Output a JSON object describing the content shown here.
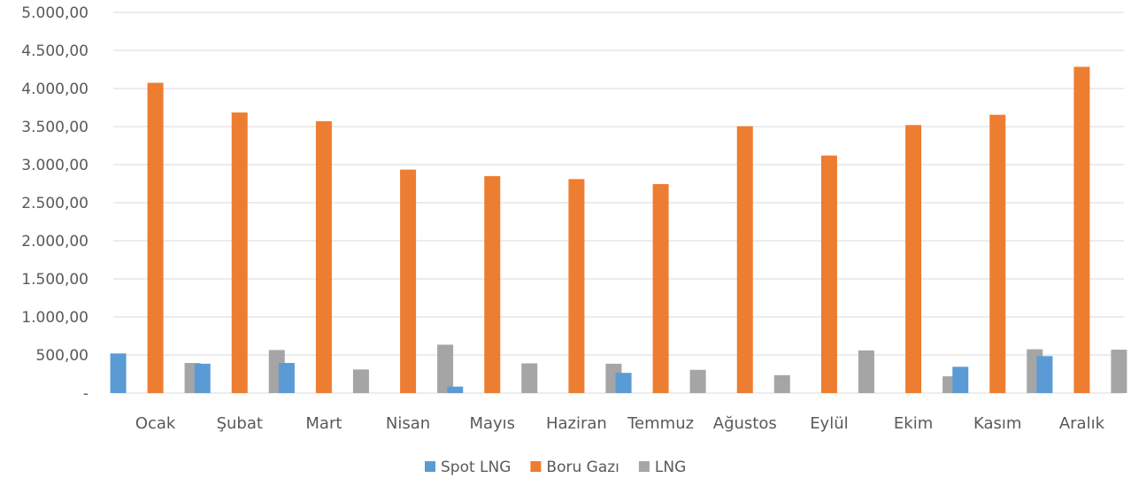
{
  "chart_data": {
    "type": "bar",
    "categories": [
      "Ocak",
      "Şubat",
      "Mart",
      "Nisan",
      "Mayıs",
      "Haziran",
      "Temmuz",
      "Ağustos",
      "Eylül",
      "Ekim",
      "Kasım",
      "Aralık"
    ],
    "series": [
      {
        "name": "Spot LNG",
        "color": "#5b9bd5",
        "values": [
          520,
          385,
          395,
          0,
          85,
          0,
          265,
          0,
          0,
          0,
          345,
          485
        ]
      },
      {
        "name": "Boru Gazı",
        "color": "#ed7d31",
        "values": [
          4075,
          3685,
          3570,
          2935,
          2850,
          2810,
          2745,
          3505,
          3120,
          3520,
          3655,
          4285
        ]
      },
      {
        "name": "LNG",
        "color": "#a5a5a5",
        "values": [
          395,
          565,
          310,
          635,
          390,
          385,
          305,
          235,
          560,
          220,
          575,
          570
        ]
      }
    ],
    "y_ticks": [
      "-",
      "500,00",
      "1.000,00",
      "1.500,00",
      "2.000,00",
      "2.500,00",
      "3.000,00",
      "3.500,00",
      "4.000,00",
      "4.500,00",
      "5.000,00"
    ],
    "ylim": [
      0,
      5000
    ],
    "grid": true,
    "legend_position": "bottom-center"
  }
}
